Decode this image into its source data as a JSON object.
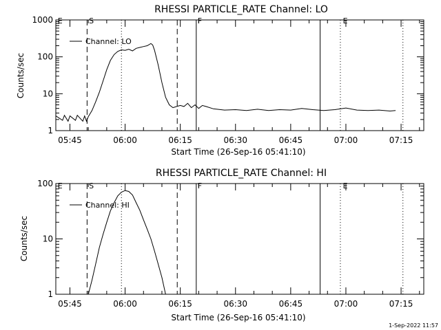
{
  "chart_data": [
    {
      "type": "line",
      "title": "RHESSI PARTICLE_RATE Channel: LO",
      "xlabel": "Start Time (26-Sep-16 05:41:10)",
      "ylabel": "Counts/sec",
      "yscale": "log",
      "ylim": [
        1,
        1000
      ],
      "yticks": [
        1,
        10,
        100,
        1000
      ],
      "ytick_labels": [
        "1",
        "10",
        "100",
        "1000"
      ],
      "xlim": [
        "05:41:10",
        "07:21:10"
      ],
      "xtick_labels": [
        "05:45",
        "06:00",
        "06:15",
        "06:30",
        "06:45",
        "07:00",
        "07:15"
      ],
      "legend": "top-left",
      "series": [
        {
          "name": "Channel: LO",
          "x": [
            "05:41:10",
            "05:43:00",
            "05:43:30",
            "05:44:30",
            "05:45:00",
            "05:46:30",
            "05:47:00",
            "05:48:30",
            "05:49:00",
            "05:49:30",
            "05:50:00",
            "05:51:00",
            "05:52:00",
            "05:53:00",
            "05:54:00",
            "05:55:00",
            "05:56:00",
            "05:57:00",
            "05:58:00",
            "05:59:00",
            "06:00:00",
            "06:01:00",
            "06:02:00",
            "06:03:00",
            "06:04:00",
            "06:05:00",
            "06:06:00",
            "06:07:00",
            "06:07:30",
            "06:08:00",
            "06:09:00",
            "06:10:00",
            "06:11:00",
            "06:12:00",
            "06:13:00",
            "06:14:00",
            "06:15:00",
            "06:16:00",
            "06:17:00",
            "06:18:00",
            "06:19:00",
            "06:20:00",
            "06:21:00",
            "06:22:00",
            "06:24:00",
            "06:27:00",
            "06:30:00",
            "06:33:00",
            "06:36:00",
            "06:39:00",
            "06:42:00",
            "06:45:00",
            "06:48:00",
            "06:51:00",
            "06:54:00",
            "06:57:00",
            "07:00:00",
            "07:03:00",
            "07:06:00",
            "07:09:00",
            "07:12:00",
            "07:13:30"
          ],
          "y": [
            2.5,
            1.9,
            2.6,
            1.8,
            2.5,
            1.9,
            2.6,
            1.8,
            2.5,
            1.8,
            2.4,
            3.5,
            6,
            11,
            22,
            45,
            80,
            115,
            140,
            155,
            150,
            160,
            145,
            170,
            180,
            190,
            200,
            230,
            210,
            150,
            60,
            20,
            8,
            5,
            4.2,
            4.5,
            4.8,
            4.5,
            5.5,
            4.2,
            5.0,
            4.0,
            4.8,
            4.5,
            3.9,
            3.6,
            3.7,
            3.5,
            3.8,
            3.5,
            3.7,
            3.6,
            4.0,
            3.7,
            3.5,
            3.7,
            4.1,
            3.6,
            3.5,
            3.6,
            3.4,
            3.5
          ]
        }
      ],
      "markers": {
        "dashed": [
          "05:49:40",
          "06:14:10"
        ],
        "dotted": [
          "05:59:00",
          "06:58:30",
          "07:15:30"
        ],
        "solid": [
          "06:19:20",
          "06:53:00"
        ],
        "labels": [
          {
            "text": "E",
            "at": "05:41:30"
          },
          {
            "text": "S",
            "at": "05:50:00"
          },
          {
            "text": "F",
            "at": "06:19:30"
          },
          {
            "text": "E",
            "at": "06:59:00"
          }
        ]
      }
    },
    {
      "type": "line",
      "title": "RHESSI PARTICLE_RATE Channel: HI",
      "xlabel": "Start Time (26-Sep-16 05:41:10)",
      "ylabel": "Counts/sec",
      "yscale": "log",
      "ylim": [
        1,
        100
      ],
      "yticks": [
        1,
        10,
        100
      ],
      "ytick_labels": [
        "1",
        "10",
        "100"
      ],
      "xlim": [
        "05:41:10",
        "07:21:10"
      ],
      "xtick_labels": [
        "05:45",
        "06:00",
        "06:15",
        "06:30",
        "06:45",
        "07:00",
        "07:15"
      ],
      "legend": "top-left",
      "series": [
        {
          "name": "Channel: HI",
          "x": [
            "05:50:00",
            "05:51:00",
            "05:52:00",
            "05:53:00",
            "05:54:00",
            "05:55:00",
            "05:56:00",
            "05:57:00",
            "05:58:00",
            "05:59:00",
            "06:00:00",
            "06:01:00",
            "06:02:00",
            "06:03:00",
            "06:04:00",
            "06:05:00",
            "06:06:00",
            "06:07:00",
            "06:08:00",
            "06:09:00",
            "06:10:00",
            "06:11:00"
          ],
          "y": [
            1.0,
            1.8,
            3.5,
            7,
            12,
            20,
            32,
            45,
            60,
            70,
            75,
            72,
            62,
            45,
            33,
            22,
            15,
            10,
            6,
            3.5,
            2,
            1.0
          ]
        }
      ],
      "markers": {
        "dashed": [
          "05:49:40",
          "06:14:10"
        ],
        "dotted": [
          "05:59:00",
          "06:58:30",
          "07:15:30"
        ],
        "solid": [
          "06:19:20",
          "06:53:00"
        ],
        "labels": [
          {
            "text": "E",
            "at": "05:41:30"
          },
          {
            "text": "S",
            "at": "05:50:00"
          },
          {
            "text": "F",
            "at": "06:19:30"
          },
          {
            "text": "E",
            "at": "06:59:00"
          }
        ]
      }
    }
  ],
  "footer": {
    "stamp": "1-Sep-2022 11:57"
  }
}
